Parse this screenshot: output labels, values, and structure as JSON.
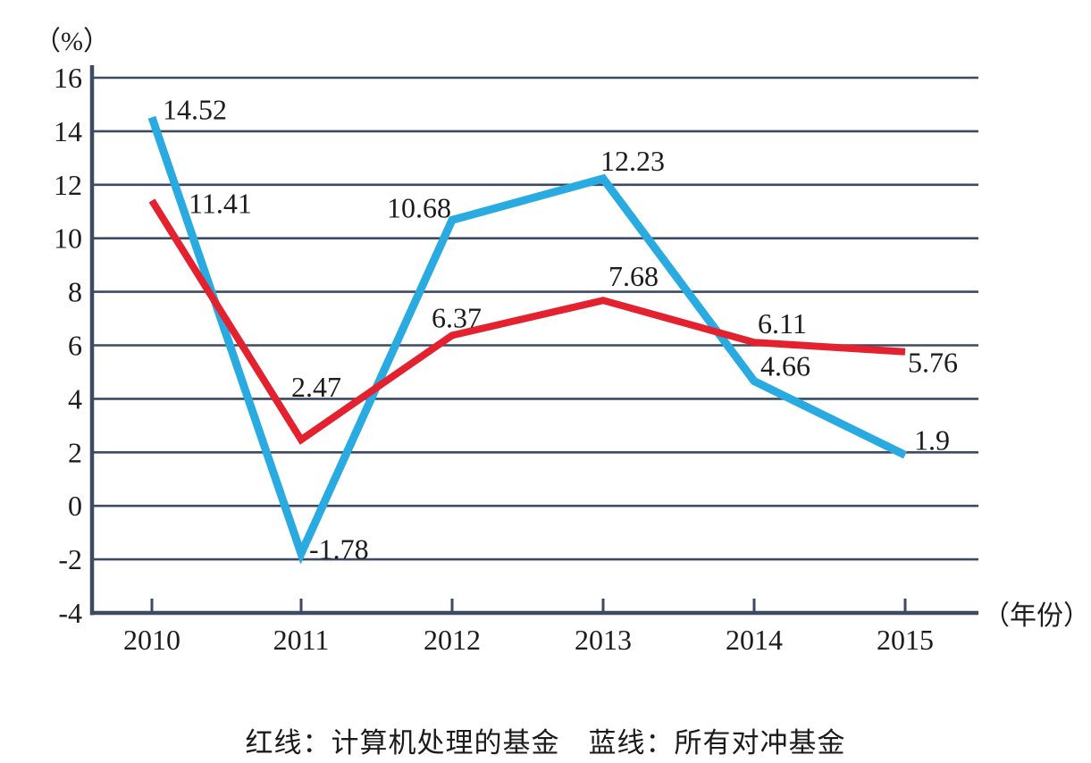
{
  "chart_data": {
    "type": "line",
    "title": "",
    "x_axis_label": "（年份）",
    "y_axis_label": "（%）",
    "x": [
      "2010",
      "2011",
      "2012",
      "2013",
      "2014",
      "2015"
    ],
    "yticks": [
      16,
      14,
      12,
      10,
      8,
      6,
      4,
      2,
      0,
      -2,
      -4
    ],
    "ylim": [
      -4,
      16
    ],
    "grid": true,
    "grid_color": "#3D4A63",
    "text_color": "#1C1C1C",
    "legend_position": "bottom-caption",
    "series": [
      {
        "id": "blue-line",
        "name": "所有对冲基金",
        "color": "#29ABE2",
        "stroke_width": 9,
        "values": [
          14.52,
          -1.78,
          10.68,
          12.23,
          4.66,
          1.9
        ],
        "labels": [
          "14.52",
          "-1.78",
          "10.68",
          "12.23",
          "4.66",
          "1.9"
        ],
        "label_offsets": [
          [
            12,
            2
          ],
          [
            9,
            6
          ],
          [
            -73,
            -3
          ],
          [
            -3,
            -9
          ],
          [
            7,
            -6
          ],
          [
            10,
            -6
          ]
        ]
      },
      {
        "id": "red-line",
        "name": "计算机处理的基金",
        "color": "#E4212E",
        "stroke_width": 8,
        "values": [
          11.41,
          2.47,
          6.37,
          7.68,
          6.11,
          5.76
        ],
        "labels": [
          "11.41",
          "2.47",
          "6.37",
          "7.68",
          "6.11",
          "5.76"
        ],
        "label_offsets": [
          [
            41,
            14
          ],
          [
            -11,
            -48
          ],
          [
            -23,
            -9
          ],
          [
            6,
            -16
          ],
          [
            4,
            -10
          ],
          [
            3,
            23
          ]
        ]
      }
    ]
  },
  "caption": "红线：计算机处理的基金　蓝线：所有对冲基金"
}
